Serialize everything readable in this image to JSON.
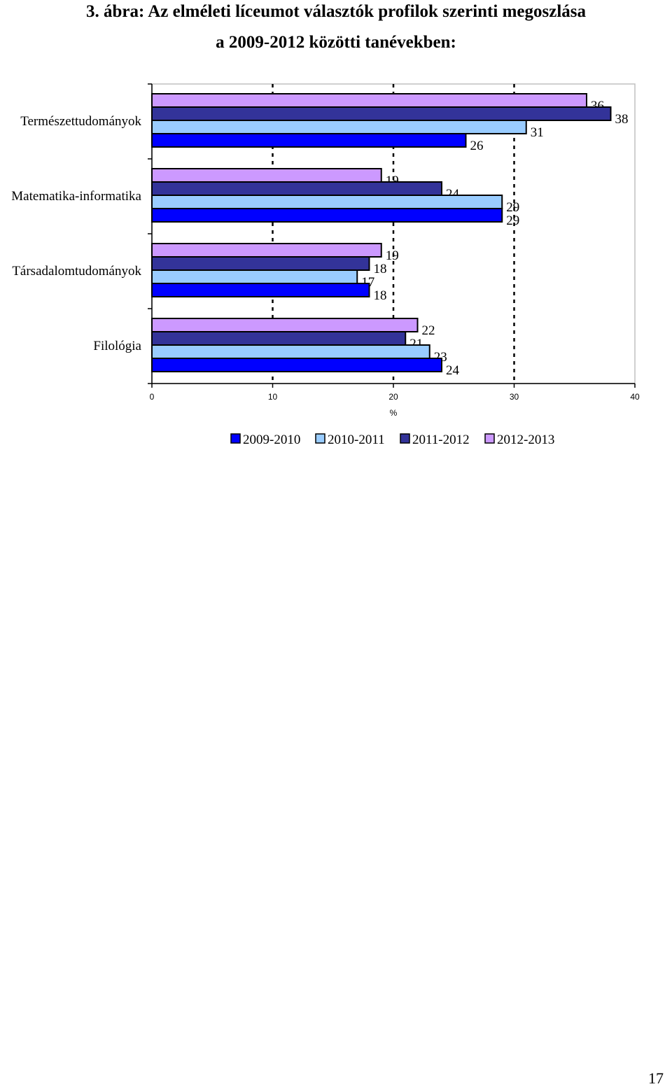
{
  "heading": {
    "line1": "3. ábra: Az elméleti líceumot választók profilok szerinti megoszlása",
    "line2": "a 2009-2012 közötti tanévekben:"
  },
  "chart_data": {
    "type": "bar",
    "orientation": "horizontal",
    "categories": [
      "Természettudományok",
      "Matematika-informatika",
      "Társadalomtudományok",
      "Filológia"
    ],
    "series": [
      {
        "name": "2009-2010",
        "color": "#0000ff",
        "values": [
          26,
          29,
          18,
          24
        ]
      },
      {
        "name": "2010-2011",
        "color": "#99ccff",
        "values": [
          31,
          29,
          17,
          23
        ]
      },
      {
        "name": "2011-2012",
        "color": "#333399",
        "values": [
          38,
          24,
          18,
          21
        ]
      },
      {
        "name": "2012-2013",
        "color": "#cc99ff",
        "values": [
          36,
          19,
          19,
          22
        ]
      }
    ],
    "xlabel": "%",
    "xlim": [
      0,
      40
    ],
    "xticks": [
      0,
      10,
      20,
      30,
      40
    ],
    "grid": "dashed vertical",
    "legend": "bottom"
  },
  "page": {
    "number": "17"
  }
}
